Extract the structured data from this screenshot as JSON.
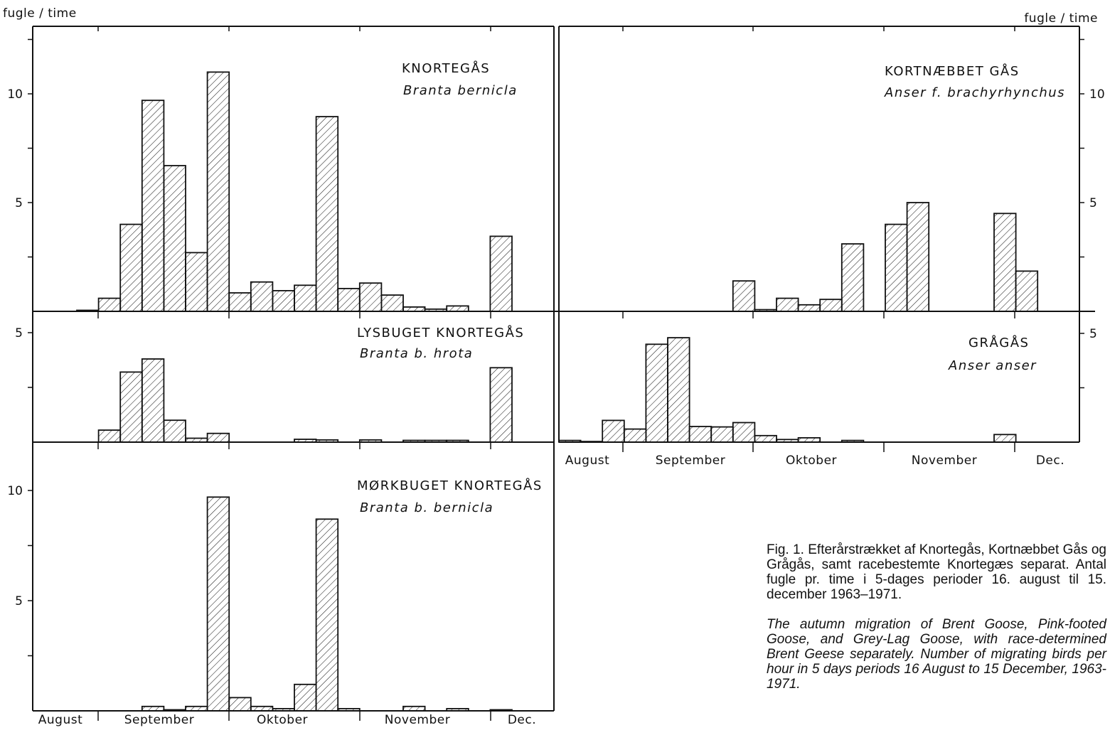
{
  "unit_label_left": "fugle  /  time",
  "unit_label_right": "fugle  /  time",
  "months": [
    "August",
    "September",
    "Oktober",
    "November",
    "Dec."
  ],
  "caption": {
    "da": "Fig. 1. Efterårstrækket af Knortegås, Kortnæbbet Gås og Grågås, samt racebestemte Knortegæs separat. Antal fugle pr. time i 5-dages perioder 16. august til 15. december 1963–1971.",
    "en": "The autumn migration of Brent Goose, Pink-footed Goose, and Grey-Lag Goose, with race-determined Brent Geese separately. Number of migrating birds per hour in 5 days periods 16 August to 15 December, 1963-1971."
  },
  "chart_data": [
    {
      "type": "bar",
      "title": "KNORTEGÅS",
      "subtitle": "Branta bernicla",
      "ylabel": "fugle / time",
      "ylim": [
        0,
        12.5
      ],
      "yticks": [
        10,
        5
      ],
      "values": [
        0.05,
        0.6,
        4.0,
        9.7,
        6.7,
        2.7,
        11.0,
        0.85,
        1.35,
        0.95,
        1.2,
        8.95,
        1.05,
        1.3,
        0.75,
        0.2,
        0.1,
        0.25,
        0,
        3.45
      ]
    },
    {
      "type": "bar",
      "title": "KORTNÆBBET  GÅS",
      "subtitle": "Anser f. brachyrhynchus",
      "ylabel": "fugle / time",
      "ylim": [
        0,
        12.5
      ],
      "yticks": [
        10,
        5
      ],
      "values": [
        0,
        0,
        0,
        0,
        0,
        0,
        0,
        0,
        1.4,
        0.08,
        0.6,
        0.3,
        0.55,
        3.1,
        0,
        4.0,
        5.0,
        0,
        0,
        0,
        4.5,
        1.85
      ]
    },
    {
      "type": "bar",
      "title": "LYSBUGET  KNORTEGÅS",
      "subtitle": "Branta  b.  hrota",
      "ylim": [
        0,
        6
      ],
      "yticks": [
        5
      ],
      "values": [
        0,
        0.55,
        3.2,
        3.8,
        1.0,
        0.18,
        0.4,
        0,
        0,
        0,
        0.13,
        0.1,
        0,
        0.1,
        0,
        0.08,
        0.08,
        0.08,
        0,
        3.4
      ]
    },
    {
      "type": "bar",
      "title": "GRÅGÅS",
      "subtitle": "Anser  anser",
      "ylim": [
        0,
        6
      ],
      "yticks": [
        5
      ],
      "values": [
        0.08,
        0.03,
        1.0,
        0.6,
        4.5,
        4.8,
        0.72,
        0.7,
        0.9,
        0.3,
        0.12,
        0.2,
        0,
        0.08,
        0,
        0,
        0,
        0,
        0,
        0,
        0.35
      ]
    },
    {
      "type": "bar",
      "title": "MØRKBUGET  KNORTEGÅS",
      "subtitle": "Branta  b.  bernicla",
      "ylim": [
        0,
        10.3
      ],
      "yticks": [
        10,
        5
      ],
      "values": [
        0,
        0,
        0,
        0.2,
        0.05,
        0.2,
        9.7,
        0.6,
        0.2,
        0.1,
        1.2,
        8.7,
        0.1,
        0,
        0,
        0.2,
        0,
        0.1,
        0,
        0.05
      ]
    }
  ]
}
